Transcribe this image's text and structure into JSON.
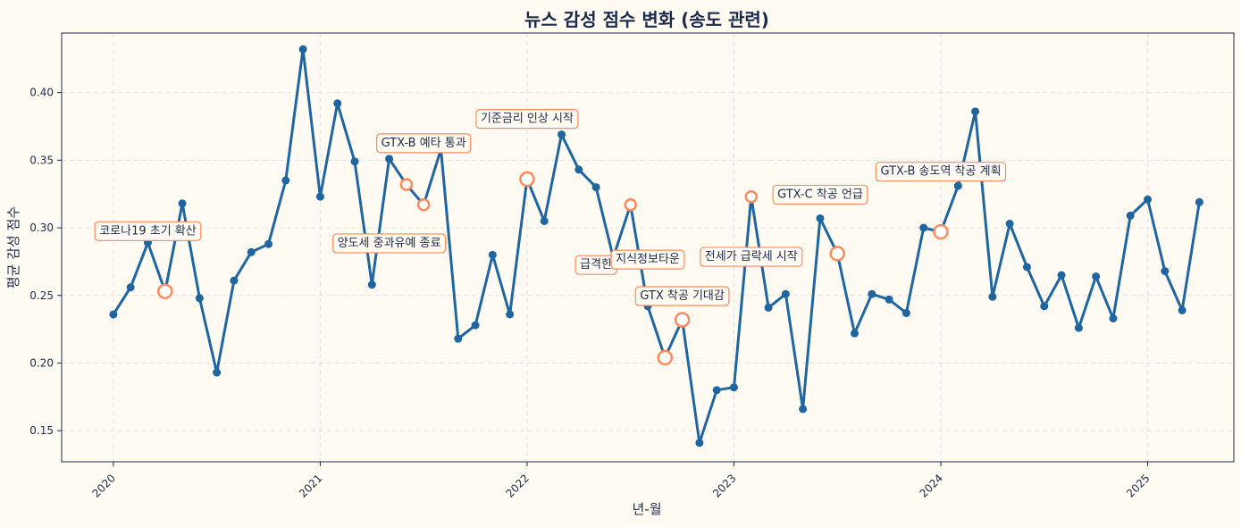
{
  "chart_data": {
    "type": "line",
    "title": "뉴스 감성 점수 변화 (송도 관련)",
    "xlabel": "년-월",
    "ylabel": "평균 감성 점수",
    "ylim": [
      0.127,
      0.444
    ],
    "yticks": [
      0.15,
      0.2,
      0.25,
      0.3,
      0.35,
      0.4
    ],
    "ytick_labels": [
      "0.15",
      "0.20",
      "0.25",
      "0.30",
      "0.35",
      "0.40"
    ],
    "xticks": [
      "2020-01",
      "2021-01",
      "2022-01",
      "2023-01",
      "2024-01",
      "2025-01"
    ],
    "xtick_labels": [
      "2020",
      "2021",
      "2022",
      "2023",
      "2024",
      "2025"
    ],
    "xlim": [
      "2019-10",
      "2025-06"
    ],
    "grid": true,
    "colors": {
      "line": "#1f66a0",
      "highlight": "#ff8a5b",
      "background": "#fffbf3",
      "plot_background": "#fffbf3"
    },
    "series": [
      {
        "x": [
          "2020-01",
          "2020-02",
          "2020-03",
          "2020-04",
          "2020-05",
          "2020-06",
          "2020-07",
          "2020-08",
          "2020-09",
          "2020-10",
          "2020-11",
          "2020-12",
          "2021-01",
          "2021-02",
          "2021-03",
          "2021-04",
          "2021-05",
          "2021-06",
          "2021-07",
          "2021-08",
          "2021-09",
          "2021-10",
          "2021-11",
          "2021-12",
          "2022-01",
          "2022-02",
          "2022-03",
          "2022-04",
          "2022-05",
          "2022-06",
          "2022-07",
          "2022-08",
          "2022-09",
          "2022-10",
          "2022-11",
          "2022-12",
          "2023-01",
          "2023-02",
          "2023-03",
          "2023-04",
          "2023-05",
          "2023-06",
          "2023-07",
          "2023-08",
          "2023-09",
          "2023-10",
          "2023-11",
          "2023-12",
          "2024-01",
          "2024-02",
          "2024-03",
          "2024-04",
          "2024-05",
          "2024-06",
          "2024-07",
          "2024-08",
          "2024-09",
          "2024-10",
          "2024-11",
          "2024-12",
          "2025-01",
          "2025-02",
          "2025-03",
          "2025-04"
        ],
        "values": [
          0.236,
          0.256,
          0.289,
          0.253,
          0.318,
          0.248,
          0.193,
          0.261,
          0.282,
          0.288,
          0.335,
          0.432,
          0.323,
          0.392,
          0.349,
          0.258,
          0.351,
          0.332,
          0.317,
          0.358,
          0.218,
          0.228,
          0.28,
          0.236,
          0.336,
          0.305,
          0.369,
          0.343,
          0.33,
          0.278,
          0.317,
          0.242,
          0.204,
          0.232,
          0.141,
          0.18,
          0.182,
          0.323,
          0.241,
          0.251,
          0.166,
          0.307,
          0.281,
          0.222,
          0.251,
          0.247,
          0.237,
          0.3,
          0.297,
          0.331,
          0.386,
          0.249,
          0.303,
          0.271,
          0.242,
          0.265,
          0.226,
          0.264,
          0.233,
          0.309,
          0.321,
          0.268,
          0.239,
          0.319
        ]
      }
    ],
    "annotations": [
      {
        "x": "2020-04",
        "y": 0.253,
        "text": "코로나19 초기 확산",
        "label_x": "2020-03",
        "label_y": 0.2985
      },
      {
        "x": "2021-06",
        "y": 0.332,
        "text": "GTX-B 예타 통과",
        "label_x": "2021-07",
        "label_y": 0.3635
      },
      {
        "x": "2021-07",
        "y": 0.317,
        "text": "양도세 중과유예 종료",
        "label_x": "2021-05",
        "label_y": 0.2895
      },
      {
        "x": "2022-01",
        "y": 0.336,
        "text": "기준금리 인상 시작",
        "label_x": "2022-01",
        "label_y": 0.3815
      },
      {
        "x": "2022-07",
        "y": 0.317,
        "text": "급격한",
        "label_x": "2022-05",
        "label_y": 0.2735
      },
      {
        "x": "2022-09",
        "y": 0.204,
        "text": "지식정보타운",
        "label_x": "2022-08",
        "label_y": 0.2775
      },
      {
        "x": "2022-10",
        "y": 0.232,
        "text": "GTX 착공 기대감",
        "label_x": "2022-10",
        "label_y": 0.2505
      },
      {
        "x": "2023-02",
        "y": 0.323,
        "text": "전세가 급락세 시작",
        "label_x": "2023-02",
        "label_y": 0.2795
      },
      {
        "x": "2023-07",
        "y": 0.281,
        "text": "GTX-C 착공 언급",
        "label_x": "2023-06",
        "label_y": 0.3255
      },
      {
        "x": "2024-01",
        "y": 0.297,
        "text": "GTX-B 송도역 착공 계획",
        "label_x": "2024-01",
        "label_y": 0.3425
      }
    ]
  }
}
